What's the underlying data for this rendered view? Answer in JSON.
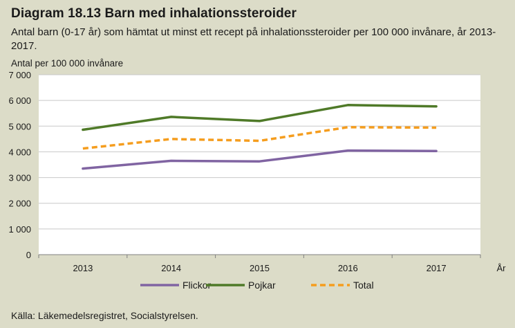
{
  "header": {
    "title": "Diagram 18.13 Barn med inhalationssteroider",
    "subtitle": "Antal barn (0-17 år) som hämtat ut minst ett recept på inhalationssteroider per 100 000 invånare, år 2013-2017."
  },
  "footer": {
    "source": "Källa: Läkemedelsregistret, Socialstyrelsen."
  },
  "chart_data": {
    "type": "line",
    "title": "Diagram 18.13 Barn med inhalationssteroider",
    "ylabel": "Antal per 100 000 invånare",
    "xlabel": "År",
    "categories": [
      "2013",
      "2014",
      "2015",
      "2016",
      "2017"
    ],
    "ylim": [
      0,
      7000
    ],
    "yticks": [
      0,
      1000,
      2000,
      3000,
      4000,
      5000,
      6000,
      7000
    ],
    "ytick_labels": [
      "0",
      "1 000",
      "2 000",
      "3 000",
      "4 000",
      "5 000",
      "6 000",
      "7 000"
    ],
    "grid": true,
    "legend_position": "bottom",
    "series": [
      {
        "name": "Flickor",
        "color": "#8064a2",
        "dash": "solid",
        "values": [
          3350,
          3650,
          3630,
          4050,
          4030
        ]
      },
      {
        "name": "Pojkar",
        "color": "#4f7a28",
        "dash": "solid",
        "values": [
          4860,
          5360,
          5200,
          5820,
          5770
        ]
      },
      {
        "name": "Total",
        "color": "#f59d1e",
        "dash": "dashed",
        "values": [
          4130,
          4500,
          4430,
          4960,
          4940
        ]
      }
    ]
  }
}
